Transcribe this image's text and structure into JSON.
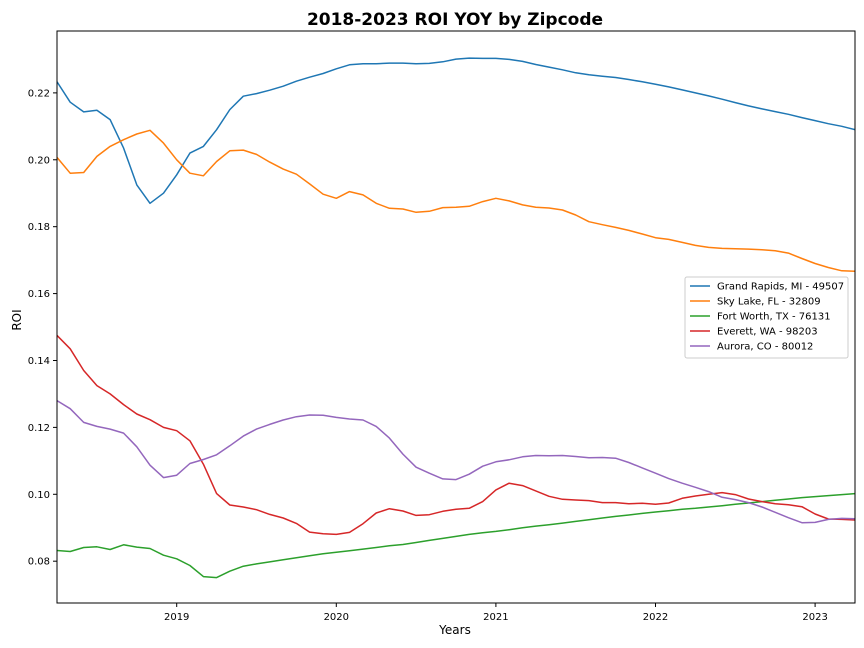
{
  "chart_data": {
    "type": "line",
    "title": "2018-2023 ROI YOY by Zipcode",
    "xlabel": "Years",
    "ylabel": "ROI",
    "xlim": [
      2018.25,
      2023.25
    ],
    "ylim": [
      0.0675,
      0.2385
    ],
    "x_ticks": [
      2019,
      2020,
      2021,
      2022,
      2023
    ],
    "x_tick_labels": [
      "2019",
      "2020",
      "2021",
      "2022",
      "2023"
    ],
    "y_ticks": [
      0.08,
      0.1,
      0.12,
      0.14,
      0.16,
      0.18,
      0.2,
      0.22
    ],
    "y_tick_labels": [
      "0.08",
      "0.10",
      "0.12",
      "0.14",
      "0.16",
      "0.18",
      "0.20",
      "0.22"
    ],
    "grid": false,
    "legend_position": "center-right",
    "x": [
      2018.25,
      2018.333,
      2018.417,
      2018.5,
      2018.583,
      2018.667,
      2018.75,
      2018.833,
      2018.917,
      2019.0,
      2019.083,
      2019.167,
      2019.25,
      2019.333,
      2019.417,
      2019.5,
      2019.583,
      2019.667,
      2019.75,
      2019.833,
      2019.917,
      2020.0,
      2020.083,
      2020.167,
      2020.25,
      2020.333,
      2020.417,
      2020.5,
      2020.583,
      2020.667,
      2020.75,
      2020.833,
      2020.917,
      2021.0,
      2021.083,
      2021.167,
      2021.25,
      2021.333,
      2021.417,
      2021.5,
      2021.583,
      2021.667,
      2021.75,
      2021.833,
      2021.917,
      2022.0,
      2022.083,
      2022.167,
      2022.25,
      2022.333,
      2022.417,
      2022.5,
      2022.583,
      2022.667,
      2022.75,
      2022.833,
      2022.917,
      2023.0,
      2023.083,
      2023.167,
      2023.25
    ],
    "series": [
      {
        "name": "Grand Rapids, MI - 49507",
        "color": "#1f77b4",
        "values": [
          0.2233,
          0.2172,
          0.2143,
          0.2148,
          0.212,
          0.2035,
          0.1925,
          0.187,
          0.19,
          0.1955,
          0.202,
          0.204,
          0.209,
          0.215,
          0.219,
          0.2198,
          0.2208,
          0.222,
          0.2235,
          0.2247,
          0.2258,
          0.2272,
          0.2284,
          0.2287,
          0.2287,
          0.2289,
          0.2289,
          0.2287,
          0.2288,
          0.2293,
          0.2301,
          0.2304,
          0.2303,
          0.2303,
          0.23,
          0.2294,
          0.2285,
          0.2277,
          0.2269,
          0.226,
          0.2254,
          0.225,
          0.2246,
          0.224,
          0.2233,
          0.2226,
          0.2218,
          0.2209,
          0.22,
          0.2191,
          0.2181,
          0.2171,
          0.2161,
          0.2152,
          0.2144,
          0.2136,
          0.2126,
          0.2117,
          0.2108,
          0.21,
          0.209
        ]
      },
      {
        "name": "Sky Lake, FL - 32809",
        "color": "#ff7f0e",
        "values": [
          0.2007,
          0.196,
          0.1962,
          0.201,
          0.204,
          0.206,
          0.2077,
          0.2088,
          0.205,
          0.2,
          0.196,
          0.1952,
          0.1995,
          0.2027,
          0.2029,
          0.2016,
          0.1993,
          0.1972,
          0.1957,
          0.1928,
          0.1897,
          0.1885,
          0.1905,
          0.1895,
          0.187,
          0.1855,
          0.1853,
          0.1843,
          0.1846,
          0.1857,
          0.1858,
          0.1861,
          0.1875,
          0.1885,
          0.1877,
          0.1865,
          0.1858,
          0.1856,
          0.185,
          0.1835,
          0.1815,
          0.1806,
          0.1798,
          0.1789,
          0.1778,
          0.1767,
          0.1762,
          0.1753,
          0.1744,
          0.1738,
          0.1735,
          0.1734,
          0.1733,
          0.1731,
          0.1728,
          0.1721,
          0.1705,
          0.169,
          0.1678,
          0.1668,
          0.1667
        ]
      },
      {
        "name": "Fort Worth, TX - 76131",
        "color": "#2ca02c",
        "values": [
          0.0832,
          0.0829,
          0.0841,
          0.0843,
          0.0835,
          0.0849,
          0.0842,
          0.0838,
          0.0818,
          0.0807,
          0.0787,
          0.0754,
          0.0751,
          0.077,
          0.0785,
          0.0792,
          0.0798,
          0.0804,
          0.081,
          0.0816,
          0.0822,
          0.0827,
          0.0831,
          0.0836,
          0.0841,
          0.0846,
          0.085,
          0.0856,
          0.0862,
          0.0868,
          0.0874,
          0.088,
          0.0885,
          0.0889,
          0.0894,
          0.09,
          0.0905,
          0.0909,
          0.0914,
          0.0919,
          0.0924,
          0.0929,
          0.0934,
          0.0938,
          0.0943,
          0.0947,
          0.0951,
          0.0955,
          0.0958,
          0.0962,
          0.0966,
          0.097,
          0.0974,
          0.0978,
          0.0982,
          0.0986,
          0.099,
          0.0993,
          0.0996,
          0.0999,
          0.1002
        ]
      },
      {
        "name": "Everett, WA - 98203",
        "color": "#d62728",
        "values": [
          0.1475,
          0.1435,
          0.137,
          0.1325,
          0.13,
          0.1268,
          0.124,
          0.1223,
          0.12,
          0.119,
          0.116,
          0.109,
          0.1002,
          0.0968,
          0.0962,
          0.0954,
          0.094,
          0.0929,
          0.0913,
          0.0887,
          0.0882,
          0.088,
          0.0886,
          0.0912,
          0.0944,
          0.0957,
          0.095,
          0.0937,
          0.0939,
          0.0949,
          0.0955,
          0.0958,
          0.0978,
          0.1013,
          0.1033,
          0.1026,
          0.101,
          0.0994,
          0.0985,
          0.0983,
          0.0981,
          0.0975,
          0.0975,
          0.0972,
          0.0973,
          0.097,
          0.0974,
          0.0988,
          0.0995,
          0.1,
          0.1005,
          0.0999,
          0.0986,
          0.0978,
          0.0972,
          0.0969,
          0.0963,
          0.0941,
          0.0926,
          0.0925,
          0.0923
        ]
      },
      {
        "name": "Aurora, CO - 80012",
        "color": "#9467bd",
        "values": [
          0.128,
          0.1256,
          0.1215,
          0.1203,
          0.1195,
          0.1183,
          0.1142,
          0.1087,
          0.105,
          0.1057,
          0.1092,
          0.1104,
          0.1118,
          0.1145,
          0.1174,
          0.1195,
          0.1209,
          0.1222,
          0.1232,
          0.1237,
          0.1236,
          0.123,
          0.1225,
          0.1222,
          0.1203,
          0.1168,
          0.112,
          0.1081,
          0.1063,
          0.1046,
          0.1044,
          0.106,
          0.1084,
          0.1097,
          0.1103,
          0.1112,
          0.1116,
          0.1115,
          0.1116,
          0.1113,
          0.1109,
          0.111,
          0.1108,
          0.1095,
          0.1079,
          0.1063,
          0.1047,
          0.1033,
          0.1021,
          0.1008,
          0.0991,
          0.0984,
          0.0975,
          0.0962,
          0.0946,
          0.093,
          0.0915,
          0.0916,
          0.0925,
          0.0928,
          0.0927
        ]
      }
    ]
  }
}
